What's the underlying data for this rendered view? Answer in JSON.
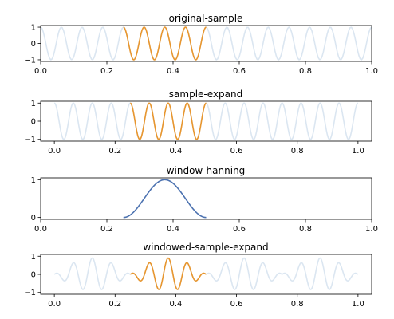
{
  "chart_data": [
    {
      "type": "line",
      "title": "original-sample",
      "xlim": [
        0.0,
        1.0
      ],
      "ylim": [
        -1.1,
        1.1
      ],
      "xticks": [
        "0.0",
        "0.2",
        "0.4",
        "0.6",
        "0.8",
        "1.0"
      ],
      "yticks": [
        "1",
        "0",
        "−1"
      ],
      "series": [
        {
          "color": "#dbe6f1",
          "signal": "sine",
          "frequency": 16,
          "x_range": [
            0.0,
            1.0
          ]
        },
        {
          "color": "#e8962e",
          "signal": "sine",
          "frequency": 16,
          "x_range": [
            0.25,
            0.5
          ]
        }
      ]
    },
    {
      "type": "line",
      "title": "sample-expand",
      "xlim": [
        -0.045,
        1.045
      ],
      "ylim": [
        -1.1,
        1.1
      ],
      "xticks": [
        "0.0",
        "0.2",
        "0.4",
        "0.6",
        "0.8",
        "1.0"
      ],
      "yticks": [
        "1",
        "0",
        "−1"
      ],
      "series": [
        {
          "color": "#dbe6f1",
          "signal": "sine",
          "frequency": 16,
          "segments": [
            [
              0.0,
              0.25
            ],
            [
              0.25,
              0.5
            ],
            [
              0.5,
              0.75
            ],
            [
              0.75,
              1.0
            ]
          ]
        },
        {
          "color": "#e8962e",
          "signal": "sine",
          "frequency": 16,
          "x_range": [
            0.25,
            0.5
          ]
        }
      ]
    },
    {
      "type": "line",
      "title": "window-hanning",
      "xlim": [
        0.0,
        1.0
      ],
      "ylim": [
        -0.05,
        1.05
      ],
      "xticks": [
        "0.0",
        "0.2",
        "0.4",
        "0.6",
        "0.8",
        "1.0"
      ],
      "yticks": [
        "1",
        "0"
      ],
      "series": [
        {
          "color": "#4c72b0",
          "signal": "hanning",
          "x_range": [
            0.25,
            0.5
          ]
        }
      ]
    },
    {
      "type": "line",
      "title": "windowed-sample-expand",
      "xlim": [
        -0.045,
        1.045
      ],
      "ylim": [
        -1.1,
        1.1
      ],
      "xticks": [
        "0.0",
        "0.2",
        "0.4",
        "0.6",
        "0.8",
        "1.0"
      ],
      "yticks": [
        "1",
        "0",
        "−1"
      ],
      "series": [
        {
          "color": "#dbe6f1",
          "signal": "windowed-sine",
          "frequency": 16,
          "segments": [
            [
              0.0,
              0.25
            ],
            [
              0.25,
              0.5
            ],
            [
              0.5,
              0.75
            ],
            [
              0.75,
              1.0
            ]
          ]
        },
        {
          "color": "#e8962e",
          "signal": "windowed-sine",
          "frequency": 16,
          "x_range": [
            0.25,
            0.5
          ]
        }
      ]
    }
  ]
}
